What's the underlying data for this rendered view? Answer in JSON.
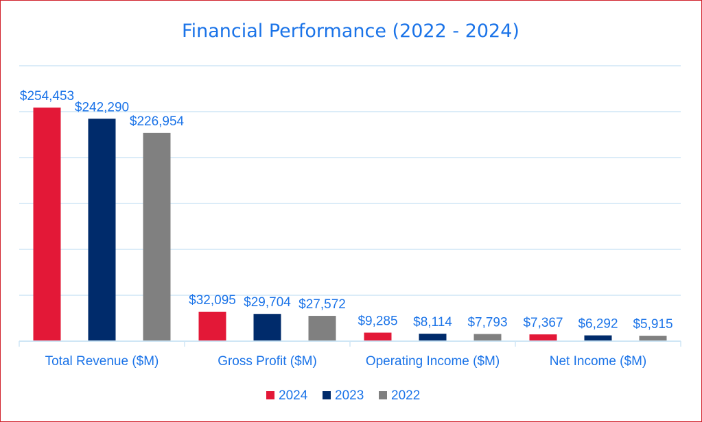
{
  "chart_data": {
    "type": "bar",
    "title": "Financial Performance (2022 - 2024)",
    "categories": [
      "Total Revenue ($M)",
      "Gross Profit ($M)",
      "Operating Income ($M)",
      "Net Income ($M)"
    ],
    "series": [
      {
        "name": "2024",
        "color": "#e31837",
        "values": [
          254453,
          32095,
          9285,
          7367
        ],
        "labels": [
          "$254,453",
          "$32,095",
          "$9,285",
          "$7,367"
        ]
      },
      {
        "name": "2023",
        "color": "#002b6b",
        "values": [
          242290,
          29704,
          8114,
          6292
        ],
        "labels": [
          "$242,290",
          "$29,704",
          "$8,114",
          "$6,292"
        ]
      },
      {
        "name": "2022",
        "color": "#808080",
        "values": [
          226954,
          27572,
          7793,
          5915
        ],
        "labels": [
          "$226,954",
          "$27,572",
          "$7,793",
          "$5,915"
        ]
      }
    ],
    "ylim": [
      0,
      300000
    ],
    "grid": true,
    "legend": "bottom",
    "colors": {
      "title": "#1a73e8",
      "grid": "#cfe6f5",
      "axis": "#cfe6f5",
      "text": "#1a73e8",
      "border": "#d0202a"
    }
  }
}
